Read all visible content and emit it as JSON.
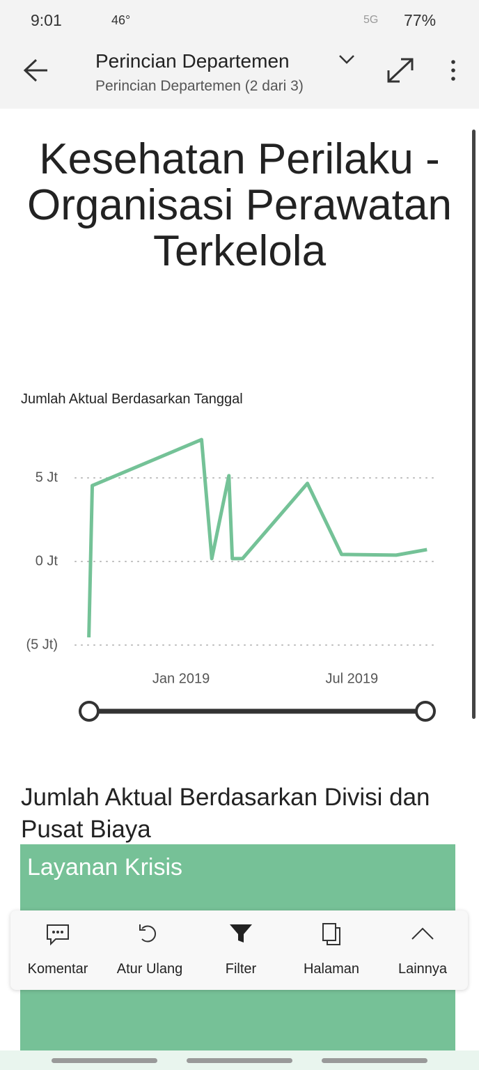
{
  "status_bar": {
    "time": "9:01",
    "temperature": "46°",
    "network": "5G",
    "battery": "77%"
  },
  "header": {
    "title": "Perincian Departemen",
    "subtitle": "Perincian Departemen (2 dari 3)"
  },
  "report_title": "Kesehatan Perilaku - Organisasi Perawatan Terkelola",
  "chart_data": {
    "type": "line",
    "title": "Jumlah Aktual Berdasarkan Tanggal",
    "x": [
      2018.73,
      2018.74,
      2019.06,
      2019.09,
      2019.14,
      2019.15,
      2019.18,
      2019.37,
      2019.47,
      2019.63,
      2019.72
    ],
    "series": [
      {
        "color": "#74c297",
        "values": [
          -4.54,
          4.54,
          7.29,
          0.17,
          5.13,
          0.17,
          0.17,
          4.67,
          0.42,
          0.38,
          0.71
        ]
      }
    ],
    "xlim": [
      2018.69,
      2019.75
    ],
    "xticks": [
      {
        "value": 2019.0,
        "label": "Jan 2019"
      },
      {
        "value": 2019.5,
        "label": "Jul 2019"
      }
    ],
    "ylim": [
      -6,
      8
    ],
    "yticks": [
      {
        "value": 5,
        "label": "5 Jt"
      },
      {
        "value": 0,
        "label": "0 Jt"
      },
      {
        "value": -5,
        "label": "(5 Jt)"
      }
    ],
    "grid": true
  },
  "treemap": {
    "title": "Jumlah Aktual Berdasarkan Divisi dan Pusat Biaya",
    "tiles": [
      {
        "label": "Layanan Krisis"
      }
    ]
  },
  "toolbar": {
    "items": [
      "Komentar",
      "Atur Ulang",
      "Filter",
      "Halaman",
      "Lainnya"
    ]
  }
}
